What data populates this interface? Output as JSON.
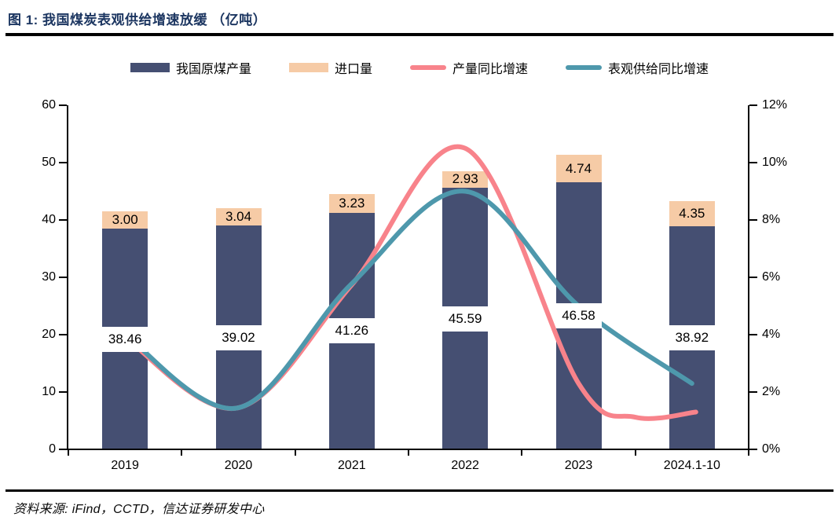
{
  "title": "图 1: 我国煤炭表观供给增速放缓 （亿吨）",
  "source": "资料来源: iFind，CCTD，信达证券研发中心",
  "colors": {
    "title_text": "#1c3661",
    "production_bar": "#454F72",
    "import_bar": "#F6CBA6",
    "production_yoy_line": "#F8838B",
    "apparent_supply_yoy_line": "#4E98AC",
    "axis": "#000000",
    "rule": "#000000"
  },
  "chart_data": {
    "type": "bar",
    "subtype": "stacked-bars-with-smooth-lines",
    "categories": [
      "2019",
      "2020",
      "2021",
      "2022",
      "2023",
      "2024.1-10"
    ],
    "series": [
      {
        "name": "我国原煤产量",
        "type": "bar",
        "axis": "left",
        "values": [
          38.46,
          39.02,
          41.26,
          45.59,
          46.58,
          38.92
        ],
        "labels": [
          "38.46",
          "39.02",
          "41.26",
          "45.59",
          "46.58",
          "38.92"
        ]
      },
      {
        "name": "进口量",
        "type": "bar",
        "axis": "left",
        "values": [
          3.0,
          3.04,
          3.23,
          2.93,
          4.74,
          4.35
        ],
        "labels": [
          "3.00",
          "3.04",
          "3.23",
          "2.93",
          "4.74",
          "4.35"
        ]
      },
      {
        "name": "产量同比增速",
        "type": "line",
        "axis": "right",
        "values_percent": [
          3.9,
          1.45,
          5.74,
          10.5,
          2.3,
          1.2
        ]
      },
      {
        "name": "表观供给同比增速",
        "type": "line",
        "axis": "right",
        "values_percent": [
          4.0,
          1.45,
          5.78,
          9.0,
          5.0,
          2.3
        ]
      }
    ],
    "left_axis": {
      "ticks": [
        "0",
        "10",
        "20",
        "30",
        "40",
        "50",
        "60"
      ],
      "range": [
        0,
        60
      ]
    },
    "right_axis": {
      "ticks": [
        "0%",
        "2%",
        "4%",
        "6%",
        "8%",
        "10%",
        "12%"
      ],
      "range": [
        0,
        12
      ]
    },
    "grid": "off",
    "legend_position": "top",
    "bars_stacked": true
  }
}
